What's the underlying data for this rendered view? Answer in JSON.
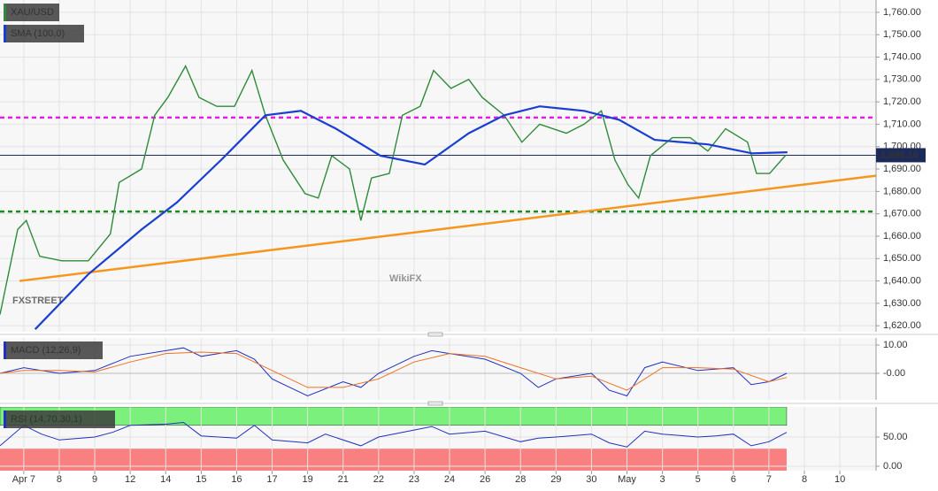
{
  "chart_data": [
    {
      "type": "line",
      "panel": "main",
      "series": [
        {
          "name": "XAU/USD",
          "color": "#2e8b3a",
          "x": [
            -0.67,
            -0.17,
            0.07,
            0.45,
            1.07,
            1.82,
            2.44,
            2.69,
            3.32,
            3.69,
            4.06,
            4.56,
            4.94,
            5.44,
            5.94,
            6.43,
            6.81,
            7.31,
            7.93,
            8.3,
            8.68,
            9.18,
            9.5,
            9.8,
            10.3,
            10.67,
            11.17,
            11.55,
            12.04,
            12.54,
            12.92,
            13.54,
            14.04,
            14.54,
            15.29,
            15.79,
            16.28,
            16.66,
            17.03,
            17.33,
            17.66,
            18.28,
            18.78,
            19.28,
            19.78,
            20.4,
            20.65,
            21.02,
            21.47
          ],
          "values": [
            1625,
            1663,
            1667,
            1651,
            1649,
            1649,
            1661,
            1684,
            1690,
            1714,
            1722,
            1736,
            1722,
            1718,
            1718,
            1734,
            1714,
            1694,
            1679,
            1677,
            1696,
            1690,
            1667,
            1686,
            1688,
            1714,
            1718,
            1734,
            1726,
            1730,
            1722,
            1714,
            1702,
            1710,
            1706,
            1710,
            1716,
            1694,
            1683,
            1677,
            1696,
            1704,
            1704,
            1698,
            1708,
            1702,
            1688,
            1688,
            1696.16
          ]
        },
        {
          "name": "SMA (100,0)",
          "color": "#1a3fd0",
          "x": [
            0.32,
            1.82,
            3.32,
            4.31,
            5.56,
            6.81,
            7.81,
            8.8,
            10.05,
            11.3,
            12.54,
            13.54,
            14.54,
            15.79,
            16.78,
            17.78,
            19.28,
            20.52,
            21.52
          ],
          "values": [
            1618.4,
            1643,
            1663,
            1675,
            1694,
            1714,
            1716,
            1708,
            1696,
            1692,
            1706,
            1714,
            1718,
            1716,
            1712,
            1703,
            1701,
            1697,
            1697.5
          ]
        }
      ],
      "xlim": [
        -0.67,
        24.02
      ],
      "ylim": [
        1617.3,
        1765.5
      ],
      "yticks": [
        {
          "value": 1620,
          "label": "1,620.00"
        },
        {
          "value": 1630,
          "label": "1,630.00"
        },
        {
          "value": 1640,
          "label": "1,640.00"
        },
        {
          "value": 1650,
          "label": "1,650.00"
        },
        {
          "value": 1660,
          "label": "1,660.00"
        },
        {
          "value": 1670,
          "label": "1,670.00"
        },
        {
          "value": 1680,
          "label": "1,680.00"
        },
        {
          "value": 1690,
          "label": "1,690.00"
        },
        {
          "value": 1700,
          "label": "1,700.00"
        },
        {
          "value": 1710,
          "label": "1,710.00"
        },
        {
          "value": 1720,
          "label": "1,720.00"
        },
        {
          "value": 1730,
          "label": "1,730.00"
        },
        {
          "value": 1740,
          "label": "1,740.00"
        },
        {
          "value": 1750,
          "label": "1,750.00"
        },
        {
          "value": 1760,
          "label": "1,760.00"
        }
      ],
      "hlines": [
        {
          "value": 1713,
          "color": "#e020e0"
        },
        {
          "value": 1671,
          "color": "#1e8a1e"
        }
      ],
      "trendline": {
        "x": [
          -0.12,
          24.02
        ],
        "y": [
          1640,
          1687
        ],
        "color": "#f5961e"
      },
      "last_price": {
        "value": 1696.16,
        "label": "1,696.16"
      },
      "grid": true
    },
    {
      "type": "line",
      "panel": "macd",
      "title": "MACD (12,26,9)",
      "series": [
        {
          "color": "#2030c0",
          "x": [
            -0.67,
            0,
            1,
            2,
            3,
            4,
            4.5,
            5,
            6,
            6.5,
            7,
            8,
            9,
            9.5,
            10,
            11,
            11.5,
            12,
            13,
            14,
            14.5,
            15,
            16,
            16.5,
            17,
            17.5,
            18,
            19,
            20,
            20.5,
            21,
            21.5
          ],
          "values": [
            0,
            2,
            0,
            1,
            6,
            8,
            9,
            6,
            8,
            5,
            -2,
            -8,
            -3,
            -5,
            0,
            6,
            8,
            7,
            5,
            0,
            -5,
            -2,
            0,
            -6,
            -8,
            2,
            4,
            1,
            2,
            -4,
            -3,
            0
          ]
        },
        {
          "color": "#f07020",
          "x": [
            -0.67,
            0,
            1,
            2,
            3,
            4,
            5,
            6,
            7,
            8,
            9,
            10,
            11,
            12,
            13,
            14,
            15,
            16,
            17,
            18,
            19,
            20,
            21,
            21.5
          ],
          "values": [
            0,
            1,
            1,
            0.5,
            4,
            7,
            7.5,
            7,
            1,
            -5,
            -5,
            -2,
            4,
            7,
            6,
            2,
            -2,
            -1,
            -6,
            2,
            2,
            1.5,
            -3,
            -1.5
          ]
        }
      ],
      "xlim": [
        -0.67,
        24.02
      ],
      "ylim": [
        -9.4,
        12.5
      ],
      "yticks": [
        {
          "value": 10,
          "label": "10.00"
        },
        {
          "value": 0,
          "label": "-0.00"
        }
      ],
      "grid": true
    },
    {
      "type": "line",
      "panel": "rsi",
      "title": "RSI (14,70,30,1)",
      "series": [
        {
          "color": "#2030c0",
          "x": [
            -0.67,
            0,
            0.5,
            1,
            2,
            2.5,
            3,
            4,
            4.5,
            5,
            6,
            6.5,
            7,
            8,
            8.5,
            9.5,
            10,
            11,
            11.5,
            12,
            13,
            14,
            14.5,
            15,
            16,
            16.5,
            17,
            17.5,
            18,
            19,
            19.5,
            20,
            20.5,
            21,
            21.5
          ],
          "values": [
            35,
            70,
            55,
            45,
            50,
            58,
            70,
            72,
            75,
            52,
            48,
            70,
            45,
            40,
            55,
            35,
            50,
            62,
            68,
            55,
            60,
            42,
            48,
            50,
            55,
            40,
            33,
            60,
            55,
            50,
            52,
            55,
            35,
            42,
            58
          ]
        }
      ],
      "levels": [
        70,
        30
      ],
      "band_colors": [
        "#7cf07c",
        "#f88080"
      ],
      "xlim": [
        -0.67,
        24.02
      ],
      "ylim": [
        -7.6,
        101.5
      ],
      "yticks": [
        {
          "value": 50,
          "label": "50.00"
        },
        {
          "value": 0,
          "label": "0.00"
        }
      ],
      "xticks": [
        {
          "value": 0,
          "label": "Apr 7"
        },
        {
          "value": 1,
          "label": "8"
        },
        {
          "value": 2,
          "label": "9"
        },
        {
          "value": 3,
          "label": "12"
        },
        {
          "value": 4,
          "label": "14"
        },
        {
          "value": 5,
          "label": "15"
        },
        {
          "value": 6,
          "label": "16"
        },
        {
          "value": 7,
          "label": "17"
        },
        {
          "value": 8,
          "label": "19"
        },
        {
          "value": 9,
          "label": "21"
        },
        {
          "value": 10,
          "label": "22"
        },
        {
          "value": 11,
          "label": "23"
        },
        {
          "value": 12,
          "label": "24"
        },
        {
          "value": 13,
          "label": "26"
        },
        {
          "value": 14,
          "label": "28"
        },
        {
          "value": 15,
          "label": "29"
        },
        {
          "value": 16,
          "label": "30"
        },
        {
          "value": 17,
          "label": "May"
        },
        {
          "value": 18,
          "label": "3"
        },
        {
          "value": 19,
          "label": "5"
        },
        {
          "value": 20,
          "label": "6"
        },
        {
          "value": 21,
          "label": "7"
        },
        {
          "value": 22,
          "label": "8"
        },
        {
          "value": 23,
          "label": "10"
        }
      ],
      "grid": true
    }
  ],
  "watermarks": [
    "FXSTREET",
    "WikiFX"
  ]
}
